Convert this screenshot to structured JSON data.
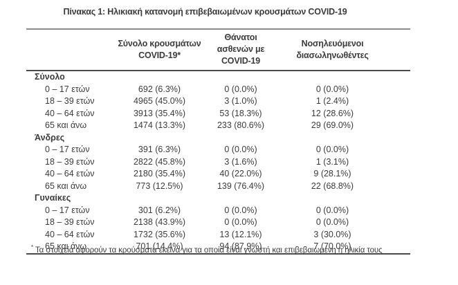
{
  "title": "Πίνακας 1: Ηλικιακή κατανομή επιβεβαιωμένων κρουσμάτων COVID-19",
  "table": {
    "headers": [
      {
        "line1": "Σύνολο κρουσμάτων",
        "line2": "COVID-19*"
      },
      {
        "line1": "Θάνατοι ασθενών με",
        "line2": "COVID-19"
      },
      {
        "line1": "Νοσηλευόμενοι",
        "line2": "διασωληνωθέντες"
      }
    ],
    "sections": [
      {
        "label": "Σύνολο",
        "rows": [
          {
            "age": "0 – 17 ετών",
            "cases": "692 (6.3%)",
            "deaths": "0 (0.0%)",
            "intubated": "0 (0.0%)"
          },
          {
            "age": "18 – 39 ετών",
            "cases": "4965 (45.0%)",
            "deaths": "3 (1.0%)",
            "intubated": "1 (2.4%)"
          },
          {
            "age": "40 – 64 ετών",
            "cases": "3913 (35.4%)",
            "deaths": "53 (18.3%)",
            "intubated": "12 (28.6%)"
          },
          {
            "age": "65 και άνω",
            "cases": "1474 (13.3%)",
            "deaths": "233 (80.6%)",
            "intubated": "29 (69.0%)"
          }
        ]
      },
      {
        "label": "Άνδρες",
        "rows": [
          {
            "age": "0 – 17 ετών",
            "cases": "391 (6.3%)",
            "deaths": "0 (0.0%)",
            "intubated": "0 (0.0%)"
          },
          {
            "age": "18 – 39 ετών",
            "cases": "2822 (45.8%)",
            "deaths": "3 (1.6%)",
            "intubated": "1 (3.1%)"
          },
          {
            "age": "40 – 64 ετών",
            "cases": "2180 (35.4%)",
            "deaths": "40 (22.0%)",
            "intubated": "9 (28.1%)"
          },
          {
            "age": "65 και άνω",
            "cases": "773 (12.5%)",
            "deaths": "139 (76.4%)",
            "intubated": "22 (68.8%)"
          }
        ]
      },
      {
        "label": "Γυναίκες",
        "rows": [
          {
            "age": "0 – 17 ετών",
            "cases": "301 (6.2%)",
            "deaths": "0 (0.0%)",
            "intubated": "0 (0.0%)"
          },
          {
            "age": "18 – 39 ετών",
            "cases": "2138 (43.9%)",
            "deaths": "0 (0.0%)",
            "intubated": "0 (0.0%)"
          },
          {
            "age": "40 – 64 ετών",
            "cases": "1732 (35.6%)",
            "deaths": "13 (12.1%)",
            "intubated": "3 (30.0%)"
          },
          {
            "age": "65 και άνω",
            "cases": "701 (14.4%)",
            "deaths": "94 (87.9%)",
            "intubated": "7 (70.0%)"
          }
        ]
      }
    ],
    "footnote_marker": "*",
    "footnote": "Τα στοιχεία αφορούν τα κρούσματα εκείνα για τα οποία είναι γνωστή και επιβεβαιωμένη η ηλικία τους"
  },
  "colors": {
    "text": "#3b3b3b",
    "rule_top": "#8c8c8c",
    "rule_dark": "#4a4a4a",
    "background": "#ffffff"
  }
}
